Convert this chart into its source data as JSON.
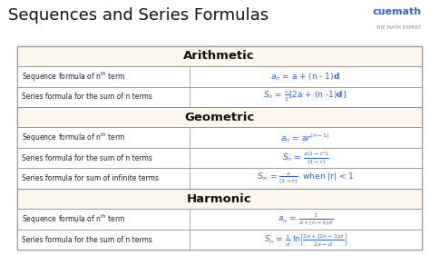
{
  "title": "Sequences and Series Formulas",
  "title_fontsize": 13,
  "bg_color": "#ffffff",
  "table_bg": "#fdf6ec",
  "header_bg": "#fdf6ec",
  "border_color": "#888888",
  "header_text_color": "#222222",
  "label_text_color": "#222222",
  "formula_blue": "#3366cc",
  "formula_orange": "#ff8800",
  "formula_green": "#228800",
  "sections": [
    {
      "name": "Arithmetic",
      "rows": [
        {
          "label": "Sequence formula of n$^{th}$ term",
          "formula_parts": [
            {
              "text": "a",
              "color": "#3366cc",
              "style": "normal",
              "size": 9
            },
            {
              "text": "n",
              "color": "#3366cc",
              "style": "subscript",
              "size": 7
            },
            {
              "text": " = a + (n - 1)",
              "color": "#222222",
              "style": "normal",
              "size": 9
            },
            {
              "text": "d",
              "color": "#3366cc",
              "style": "bold",
              "size": 9
            }
          ],
          "formula_text": "$a_n$ = a + (n - 1)$\\mathbf{d}$"
        },
        {
          "label": "Series formula for the sum of n terms",
          "formula_text": "$S_n$ = $\\frac{n}{2}$[2a + (n -1)$\\mathbf{d}$]"
        }
      ]
    },
    {
      "name": "Geometric",
      "rows": [
        {
          "label": "Sequence formula of n$^{th}$ term",
          "formula_text": "$a_n$ = a$r^{(n-1)}$"
        },
        {
          "label": "Series formula for the sum of n terms",
          "formula_text": "$S_n$ = $\\frac{a(1 - r^n)}{(1 - r)}$"
        },
        {
          "label": "Series formula for sum of infinite terms",
          "formula_text": "$S_\\infty$ = $\\frac{a}{(1-r)}$  when |r| < 1"
        }
      ]
    },
    {
      "name": "Harmonic",
      "rows": [
        {
          "label": "Sequence formula of n$^{th}$ term",
          "formula_text": "$a_n$ = $\\frac{1}{a + (n - 1)d}$"
        },
        {
          "label": "Series formula for the sum of n terms",
          "formula_text": "$S_n$ = $\\frac{1}{d}$ ln$\\left[\\frac{2a + (2n-1)d}{2a - d}\\right]$"
        }
      ]
    }
  ]
}
